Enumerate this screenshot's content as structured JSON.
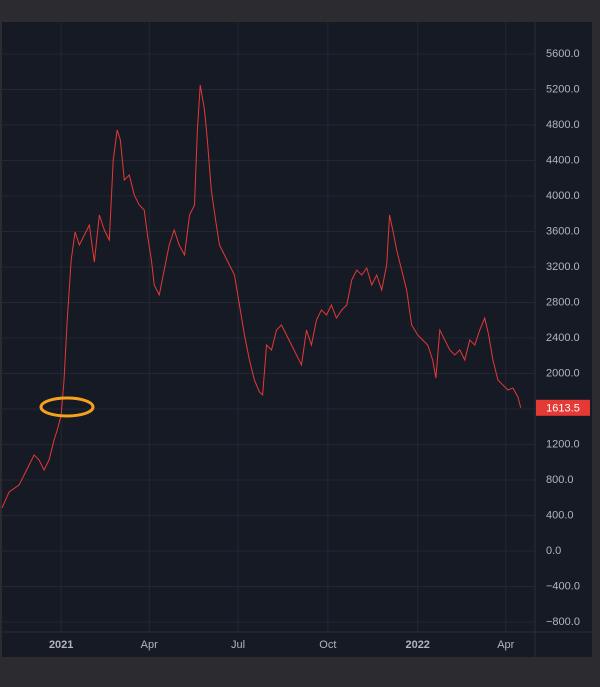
{
  "chart_data": {
    "type": "line",
    "x": [
      2020.834,
      2020.854,
      2020.882,
      2020.91,
      2020.924,
      2020.938,
      2020.952,
      2020.966,
      2020.98,
      2020.989,
      2021.0,
      2021.008,
      2021.017,
      2021.028,
      2021.039,
      2021.051,
      2021.065,
      2021.079,
      2021.093,
      2021.107,
      2021.121,
      2021.135,
      2021.146,
      2021.157,
      2021.166,
      2021.177,
      2021.191,
      2021.205,
      2021.219,
      2021.233,
      2021.242,
      2021.253,
      2021.261,
      2021.275,
      2021.289,
      2021.303,
      2021.317,
      2021.331,
      2021.346,
      2021.36,
      2021.374,
      2021.382,
      2021.39,
      2021.402,
      2021.41,
      2021.421,
      2021.433,
      2021.444,
      2021.458,
      2021.472,
      2021.486,
      2021.5,
      2021.514,
      2021.528,
      2021.542,
      2021.556,
      2021.565,
      2021.576,
      2021.59,
      2021.604,
      2021.618,
      2021.632,
      2021.646,
      2021.66,
      2021.674,
      2021.688,
      2021.702,
      2021.716,
      2021.73,
      2021.744,
      2021.758,
      2021.772,
      2021.787,
      2021.801,
      2021.815,
      2021.829,
      2021.843,
      2021.857,
      2021.871,
      2021.885,
      2021.899,
      2021.913,
      2021.921,
      2021.93,
      2021.941,
      2021.955,
      2021.969,
      2021.983,
      2022.0,
      2022.014,
      2022.028,
      2022.042,
      2022.051,
      2022.062,
      2022.076,
      2022.09,
      2022.104,
      2022.118,
      2022.132,
      2022.146,
      2022.16,
      2022.174,
      2022.188,
      2022.199,
      2022.211,
      2022.225,
      2022.239,
      2022.253,
      2022.267,
      2022.281,
      2022.289
    ],
    "series": [
      {
        "color": "#e53935",
        "values": [
          485,
          665,
          744,
          969,
          1082,
          1025,
          913,
          1025,
          1251,
          1363,
          1532,
          1927,
          2603,
          3279,
          3594,
          3448,
          3561,
          3673,
          3256,
          3786,
          3617,
          3504,
          4406,
          4744,
          4631,
          4180,
          4237,
          4011,
          3899,
          3842,
          3561,
          3279,
          2997,
          2885,
          3166,
          3448,
          3617,
          3448,
          3335,
          3786,
          3899,
          4744,
          5251,
          4969,
          4631,
          4068,
          3730,
          3448,
          3335,
          3223,
          3110,
          2772,
          2434,
          2152,
          1927,
          1792,
          1758,
          2321,
          2265,
          2490,
          2547,
          2434,
          2321,
          2209,
          2096,
          2490,
          2321,
          2603,
          2716,
          2659,
          2772,
          2625,
          2716,
          2772,
          3054,
          3166,
          3110,
          3189,
          2997,
          3110,
          2941,
          3223,
          3786,
          3617,
          3392,
          3166,
          2941,
          2547,
          2434,
          2378,
          2321,
          2152,
          1949,
          2490,
          2378,
          2265,
          2209,
          2265,
          2152,
          2378,
          2321,
          2490,
          2625,
          2434,
          2152,
          1927,
          1870,
          1814,
          1837,
          1735,
          1613.5
        ]
      }
    ],
    "xlim": [
      2020.834,
      2022.329
    ],
    "xticks": [
      2021,
      {
        "value": 2021.247,
        "label": "Apr"
      },
      {
        "value": 2021.496,
        "label": "Jul"
      },
      {
        "value": 2021.748,
        "label": "Oct"
      },
      2022,
      {
        "value": 2022.247,
        "label": "Apr"
      }
    ],
    "ylim": [
      -913,
      5961
    ],
    "yticks": [
      {
        "value": -800,
        "label": "−800.0"
      },
      {
        "value": -400,
        "label": "−400.0"
      },
      {
        "value": 0,
        "label": "0.0"
      },
      {
        "value": 400,
        "label": "400.0"
      },
      {
        "value": 800,
        "label": "800.0"
      },
      {
        "value": 1200,
        "label": "1200.0"
      },
      {
        "value": 1600,
        "label": "1600.0"
      },
      {
        "value": 2000,
        "label": "2000.0"
      },
      {
        "value": 2400,
        "label": "2400.0"
      },
      {
        "value": 2800,
        "label": "2800.0"
      },
      {
        "value": 3200,
        "label": "3200.0"
      },
      {
        "value": 3600,
        "label": "3600.0"
      },
      {
        "value": 4000,
        "label": "4000.0"
      },
      {
        "value": 4400,
        "label": "4400.0"
      },
      {
        "value": 4800,
        "label": "4800.0"
      },
      {
        "value": 5200,
        "label": "5200.0"
      },
      {
        "value": 5600,
        "label": "5600.0"
      }
    ],
    "grid": true
  }
}
